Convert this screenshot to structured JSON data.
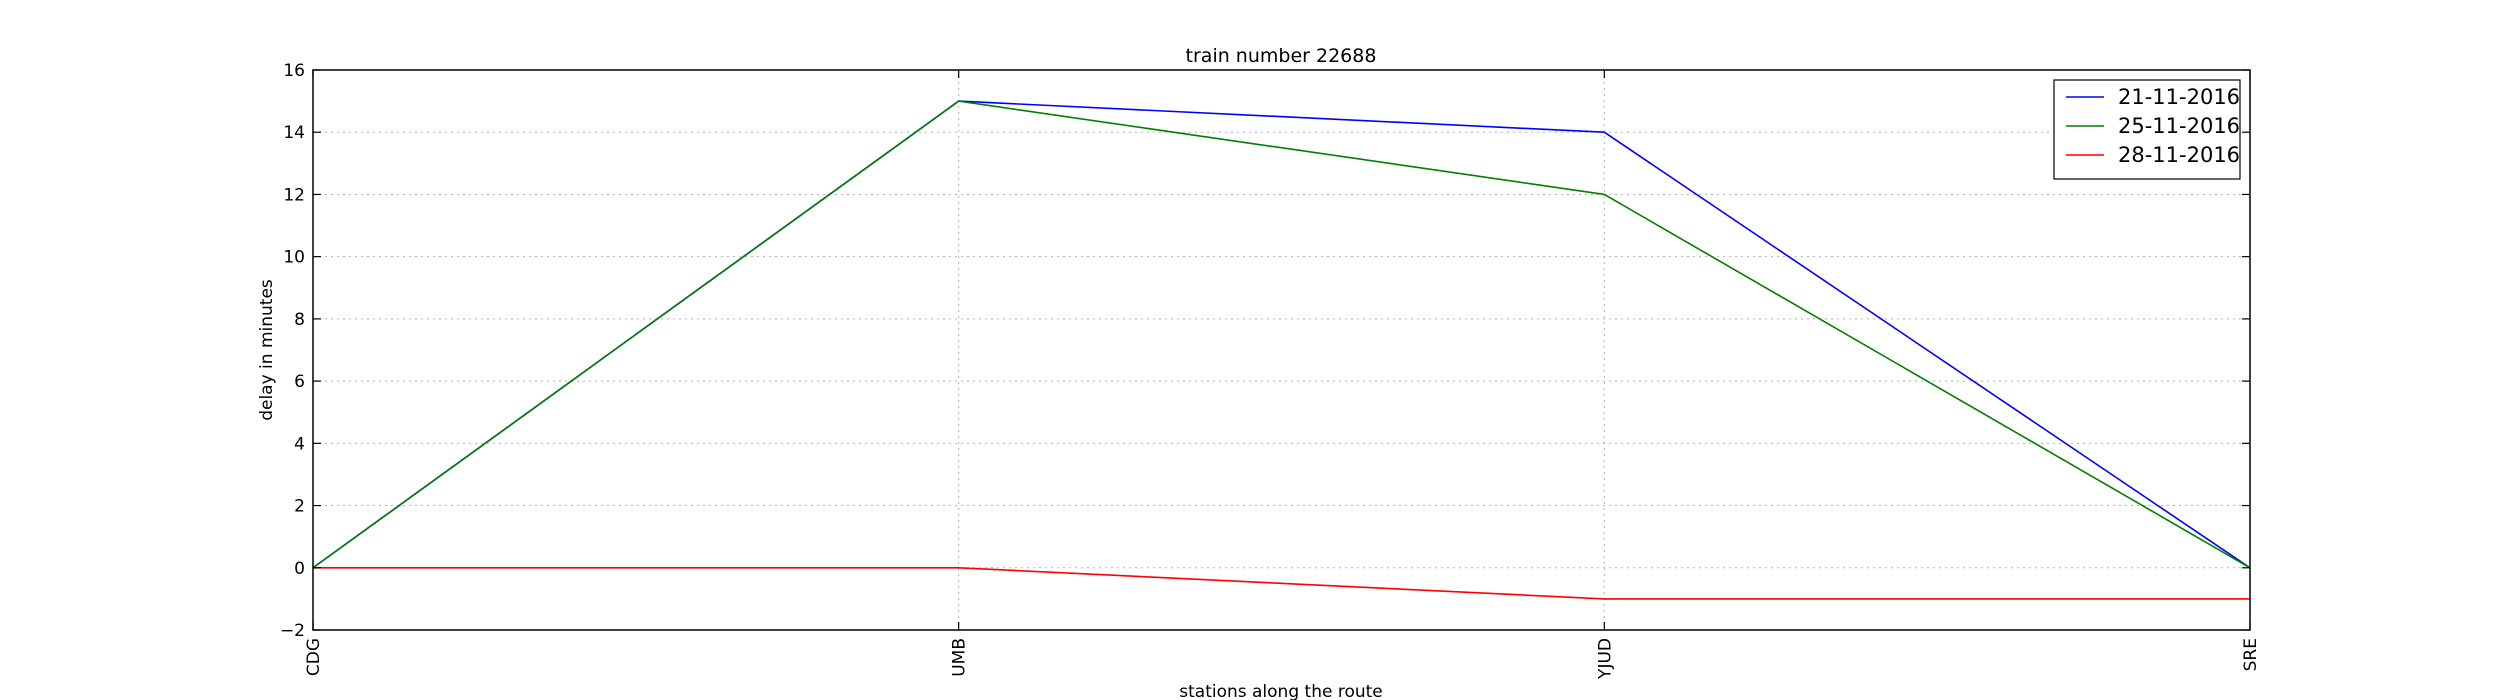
{
  "chart_data": {
    "type": "line",
    "title": "train number 22688",
    "xlabel": "stations along the route",
    "ylabel": "delay in minutes",
    "categories": [
      "CDG",
      "UMB",
      "YJUD",
      "SRE"
    ],
    "ylim": [
      -2,
      16
    ],
    "yticks": [
      -2,
      0,
      2,
      4,
      6,
      8,
      10,
      12,
      14,
      16
    ],
    "grid": true,
    "legend_position": "top-right",
    "series": [
      {
        "name": "21-11-2016",
        "color": "#0000ff",
        "values": [
          0,
          15,
          14,
          0
        ]
      },
      {
        "name": "25-11-2016",
        "color": "#008000",
        "values": [
          0,
          15,
          12,
          0
        ]
      },
      {
        "name": "28-11-2016",
        "color": "#ff0000",
        "values": [
          0,
          0,
          -1,
          -1
        ]
      }
    ]
  }
}
